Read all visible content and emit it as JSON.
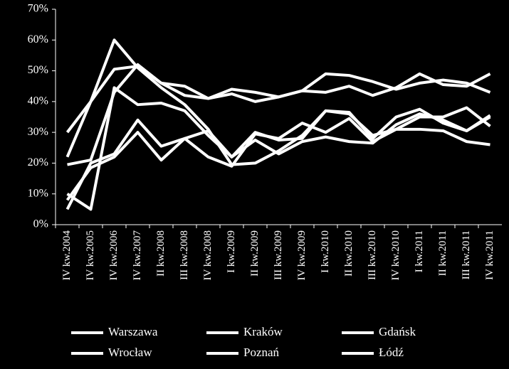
{
  "chart_data": {
    "type": "line",
    "categories": [
      "IV kw.2004",
      "IV kw.2005",
      "IV kw.2006",
      "IV kw.2007",
      "II kw.2008",
      "III kw.2008",
      "IV kw.2008",
      "I kw.2009",
      "II kw.2009",
      "III kw.2009",
      "IV kw.2009",
      "I kw.2010",
      "II kw.2010",
      "III kw.2010",
      "IV kw.2010",
      "I kw.2011",
      "II kw.2011",
      "III kw.2011",
      "IV kw.2011"
    ],
    "series": [
      {
        "name": "Warszawa",
        "color": "#ffffff",
        "values": [
          30,
          40,
          50.5,
          51.5,
          46,
          45,
          41,
          44,
          43,
          41.5,
          43.5,
          49,
          48.5,
          46.5,
          44,
          46,
          47,
          46,
          43
        ]
      },
      {
        "name": "Kraków",
        "color": "#ffffff",
        "values": [
          22,
          40,
          60,
          51,
          44.5,
          39,
          31,
          19.5,
          20,
          24,
          29,
          37,
          36.5,
          28,
          35,
          37.5,
          33,
          30.5,
          35
        ]
      },
      {
        "name": "Gdańsk",
        "color": "#ffffff",
        "values": [
          10,
          5,
          44.5,
          39,
          39.5,
          37,
          29,
          22,
          30,
          27.5,
          28,
          37,
          36,
          29,
          31,
          35,
          35,
          38,
          32
        ]
      },
      {
        "name": "Wrocław",
        "color": "#ffffff",
        "values": [
          19.5,
          21,
          43,
          52,
          46,
          42,
          41,
          42.5,
          40,
          41.5,
          43.5,
          43,
          45,
          42,
          44.5,
          49,
          45.5,
          45,
          49
        ]
      },
      {
        "name": "Poznań",
        "color": "#ffffff",
        "values": [
          5,
          20,
          23,
          34,
          25.5,
          28,
          22,
          19,
          29.5,
          28,
          33,
          30,
          34.5,
          27,
          31,
          31,
          30.5,
          27,
          26
        ]
      },
      {
        "name": "Łódź",
        "color": "#ffffff",
        "values": [
          8,
          18.5,
          22,
          30,
          21,
          28,
          30.5,
          22,
          27.5,
          23,
          27,
          28.5,
          27,
          26.5,
          32.5,
          36,
          34,
          30.5,
          35.5
        ]
      }
    ],
    "ylim": [
      0,
      70
    ],
    "yticks": [
      {
        "value": 0,
        "label": "0%"
      },
      {
        "value": 10,
        "label": "10%"
      },
      {
        "value": 20,
        "label": "20%"
      },
      {
        "value": 30,
        "label": "30%"
      },
      {
        "value": 40,
        "label": "40%"
      },
      {
        "value": 50,
        "label": "50%"
      },
      {
        "value": 60,
        "label": "60%"
      },
      {
        "value": 70,
        "label": "70%"
      }
    ],
    "grid": false
  }
}
